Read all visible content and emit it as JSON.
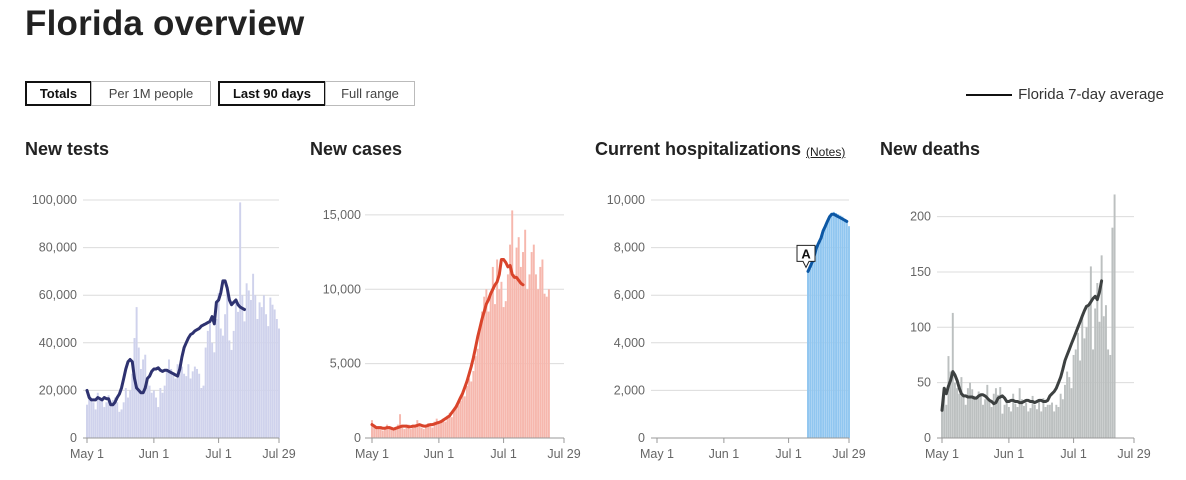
{
  "page": {
    "title": "Florida overview"
  },
  "controls": {
    "metric": [
      {
        "label": "Totals",
        "active": true
      },
      {
        "label": "Per 1M people",
        "active": false
      }
    ],
    "range": [
      {
        "label": "Last 90 days",
        "active": true
      },
      {
        "label": "Full range",
        "active": false
      }
    ]
  },
  "legend": {
    "label": "Florida 7-day average"
  },
  "colors": {
    "tests_bar": "#cfd2ec",
    "tests_line": "#2e3270",
    "cases_bar": "#f6b7ad",
    "cases_line": "#d9442b",
    "hosp_bar": "#90c6f0",
    "hosp_line": "#0c57a4",
    "deaths_bar": "#bcc0c0",
    "deaths_line": "#3d4141"
  },
  "chart_data": [
    {
      "type": "bar",
      "title": "New tests",
      "x_ticks": [
        "May 1",
        "Jun 1",
        "Jul 1",
        "Jul 29"
      ],
      "y_ticks": [
        "0",
        "20,000",
        "40,000",
        "60,000",
        "80,000",
        "100,000"
      ],
      "ylim": [
        0,
        100000
      ],
      "start_date": "2020-05-01",
      "values": [
        14000,
        18000,
        16000,
        15000,
        12000,
        19000,
        17000,
        16000,
        13000,
        15000,
        18000,
        14000,
        16000,
        17000,
        15000,
        11000,
        12000,
        15000,
        21000,
        17000,
        20000,
        27000,
        42000,
        55000,
        38000,
        29000,
        33000,
        35000,
        24000,
        22000,
        19000,
        20000,
        17000,
        13000,
        21000,
        19000,
        22000,
        28000,
        33000,
        29000,
        27000,
        25000,
        31000,
        29000,
        30000,
        27000,
        26000,
        31000,
        25000,
        28000,
        30000,
        29000,
        27000,
        21000,
        22000,
        38000,
        45000,
        49000,
        40000,
        36000,
        50000,
        61000,
        46000,
        43000,
        52000,
        62000,
        41000,
        37000,
        45000,
        57000,
        53000,
        99000,
        60000,
        49000,
        65000,
        62000,
        58000,
        69000,
        60000,
        50000,
        57000,
        55000,
        60000,
        52000,
        47000,
        59000,
        56000,
        54000,
        50000,
        46000
      ],
      "average": [
        20000,
        17000,
        16000,
        16000,
        16000,
        17000,
        16500,
        16000,
        17000,
        16500,
        16500,
        14000,
        14000,
        15000,
        17000,
        18500,
        21000,
        25000,
        29000,
        32000,
        33000,
        32000,
        25000,
        21000,
        20000,
        19000,
        19000,
        21000,
        25000,
        26000,
        28000,
        29000,
        29000,
        29500,
        28500,
        28000,
        28500,
        28500,
        28000,
        27500,
        27000,
        26500,
        26000,
        29000,
        34000,
        38000,
        40000,
        42000,
        43500,
        44000,
        45000,
        45500,
        46000,
        47000,
        47500,
        48000,
        48500,
        49000,
        51000,
        48000,
        57000,
        58000,
        61000,
        66000,
        66000,
        63000,
        58000,
        56000,
        57000,
        58000,
        56000,
        55000,
        54500,
        54000
      ],
      "series": [
        {
          "name": "Florida 7-day average"
        }
      ]
    },
    {
      "type": "bar",
      "title": "New cases",
      "x_ticks": [
        "May 1",
        "Jun 1",
        "Jul 1",
        "Jul 29"
      ],
      "y_ticks": [
        "0",
        "5,000",
        "10,000",
        "15,000"
      ],
      "ylim": [
        0,
        16000
      ],
      "start_date": "2020-05-01",
      "values": [
        1200,
        900,
        700,
        800,
        600,
        500,
        700,
        900,
        800,
        600,
        500,
        700,
        900,
        1600,
        700,
        600,
        800,
        900,
        600,
        700,
        800,
        1200,
        900,
        700,
        600,
        800,
        1000,
        900,
        700,
        1100,
        1300,
        1000,
        1200,
        1300,
        1100,
        1500,
        1700,
        1400,
        1800,
        2000,
        2200,
        2500,
        3000,
        2800,
        3500,
        4000,
        3800,
        4500,
        5500,
        6000,
        7500,
        8500,
        9500,
        10000,
        8500,
        9800,
        11500,
        9000,
        12000,
        10000,
        10500,
        8800,
        9200,
        11000,
        13000,
        15300,
        11000,
        12800,
        13500,
        11500,
        12500,
        14000,
        10000,
        11000,
        12500,
        13000,
        11000,
        10000,
        11500,
        12000,
        9700,
        9500,
        10000
      ],
      "average": [
        900,
        800,
        700,
        700,
        700,
        650,
        650,
        700,
        700,
        650,
        600,
        650,
        700,
        750,
        800,
        800,
        800,
        750,
        750,
        800,
        800,
        850,
        900,
        850,
        800,
        800,
        850,
        900,
        900,
        950,
        1000,
        1050,
        1100,
        1200,
        1300,
        1400,
        1500,
        1700,
        1900,
        2100,
        2400,
        2700,
        3000,
        3400,
        3800,
        4300,
        4800,
        5400,
        6100,
        6800,
        7400,
        8000,
        8500,
        9000,
        9300,
        9700,
        10000,
        10300,
        10500,
        11000,
        12000,
        12000,
        11800,
        11500,
        11600,
        11000,
        10800,
        10800,
        10600,
        10400,
        10300
      ],
      "series": [
        {
          "name": "Florida 7-day average"
        }
      ]
    },
    {
      "type": "bar",
      "title": "Current hospitalizations",
      "link": "(Notes)",
      "annotation": "A",
      "x_ticks": [
        "May 1",
        "Jun 1",
        "Jul 1",
        "Jul 29"
      ],
      "y_ticks": [
        "0",
        "2,000",
        "4,000",
        "6,000",
        "8,000",
        "10,000"
      ],
      "ylim": [
        0,
        10000
      ],
      "start_date": "2020-07-10",
      "values": [
        7000,
        7100,
        7300,
        7600,
        7900,
        8100,
        8300,
        8600,
        8900,
        9100,
        9300,
        9400,
        9500,
        9450,
        9400,
        9350,
        9300,
        9200,
        9100,
        8900
      ],
      "average": [
        7000,
        7200,
        7400,
        7700,
        8000,
        8200,
        8400,
        8700,
        8900,
        9100,
        9300,
        9400,
        9400,
        9350,
        9300,
        9250,
        9200,
        9150,
        9100
      ],
      "series": [
        {
          "name": "Florida 7-day average"
        }
      ]
    },
    {
      "type": "bar",
      "title": "New deaths",
      "x_ticks": [
        "May 1",
        "Jun 1",
        "Jul 1",
        "Jul 29"
      ],
      "y_ticks": [
        "0",
        "50",
        "100",
        "150",
        "200"
      ],
      "ylim": [
        0,
        215
      ],
      "start_date": "2020-05-01",
      "values": [
        25,
        45,
        30,
        74,
        60,
        113,
        50,
        45,
        40,
        55,
        38,
        30,
        45,
        50,
        44,
        38,
        36,
        42,
        40,
        30,
        35,
        48,
        33,
        28,
        40,
        45,
        39,
        46,
        22,
        30,
        34,
        28,
        24,
        40,
        31,
        28,
        45,
        35,
        29,
        32,
        24,
        27,
        38,
        30,
        26,
        35,
        24,
        36,
        28,
        30,
        30,
        32,
        24,
        30,
        28,
        40,
        35,
        48,
        60,
        55,
        45,
        75,
        80,
        95,
        70,
        110,
        90,
        100,
        120,
        155,
        80,
        117,
        140,
        105,
        165,
        110,
        120,
        80,
        75,
        190,
        220
      ],
      "average": [
        25,
        45,
        40,
        47,
        52,
        60,
        57,
        52,
        45,
        40,
        38,
        38,
        37,
        37,
        37,
        36,
        36,
        38,
        39,
        39,
        38,
        36,
        34,
        33,
        31,
        32,
        36,
        37,
        38,
        36,
        33,
        33,
        34,
        34,
        33,
        33,
        32,
        32,
        33,
        34,
        34,
        33,
        33,
        32,
        33,
        34,
        34,
        33,
        33,
        34,
        38,
        40,
        42,
        45,
        50,
        55,
        62,
        70,
        75,
        80,
        85,
        90,
        95,
        100,
        105,
        110,
        115,
        119,
        120,
        123,
        126,
        128,
        125,
        132,
        142
      ],
      "series": [
        {
          "name": "Florida 7-day average"
        }
      ]
    }
  ]
}
